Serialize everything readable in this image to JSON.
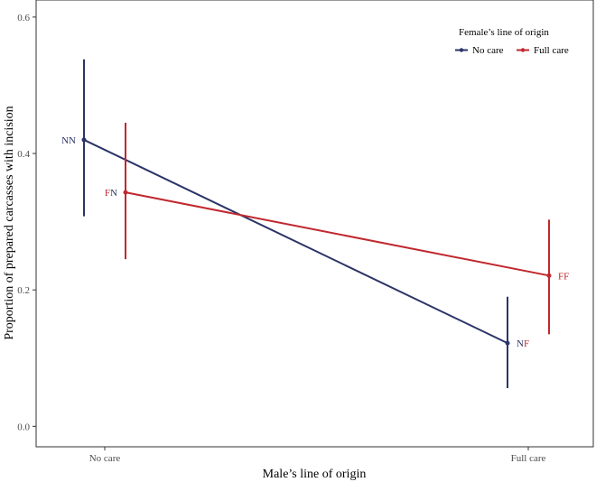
{
  "colors": {
    "no_care": "#2b3467",
    "full_care": "#c0282e",
    "panel_border": "#333333",
    "tick": "#4d4d4d"
  },
  "chart_data": {
    "type": "line",
    "title": "",
    "xlabel": "Male’s line of origin",
    "ylabel": "Proportion of prepared carcasses with incision",
    "categories": [
      "No care",
      "Full care"
    ],
    "ylim": [
      -0.03,
      0.625
    ],
    "yticks": [
      "0.0",
      "0.2",
      "0.4",
      "0.6"
    ],
    "ytick_values": [
      0.0,
      0.2,
      0.4,
      0.6
    ],
    "grid": false,
    "legend": {
      "title": "Female’s line of origin",
      "placement": "top-right"
    },
    "series": [
      {
        "name": "No care",
        "color": "#2b3467",
        "values": [
          0.42,
          0.122
        ],
        "lower": [
          0.308,
          0.056
        ],
        "upper": [
          0.538,
          0.19
        ],
        "labels": [
          {
            "first": "N",
            "second": "N",
            "first_color": "#2b3467",
            "second_color": "#2b3467"
          },
          {
            "first": "N",
            "second": "F",
            "first_color": "#2b3467",
            "second_color": "#c0282e"
          }
        ]
      },
      {
        "name": "Full care",
        "color": "#c0282e",
        "values": [
          0.343,
          0.221
        ],
        "lower": [
          0.245,
          0.135
        ],
        "upper": [
          0.445,
          0.303
        ],
        "labels": [
          {
            "first": "F",
            "second": "N",
            "first_color": "#c0282e",
            "second_color": "#2b3467"
          },
          {
            "first": "F",
            "second": "F",
            "first_color": "#c0282e",
            "second_color": "#c0282e"
          }
        ]
      }
    ]
  }
}
